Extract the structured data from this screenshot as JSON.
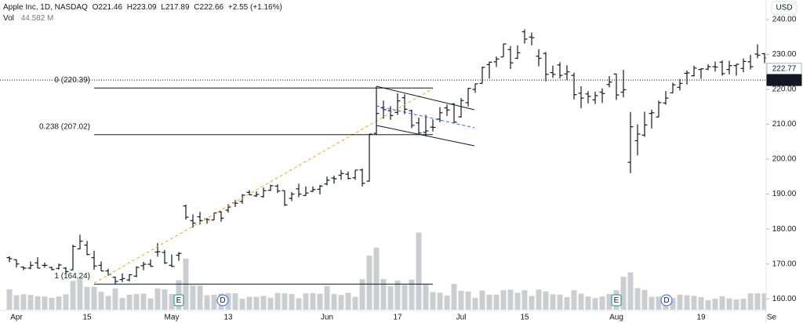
{
  "header": {
    "symbol": "Apple Inc, 1D, NASDAQ",
    "open": "O221.46",
    "high": "H223.09",
    "low": "L217.89",
    "close": "C222.66",
    "change": "+2.55 (+1.16%)",
    "volume_label": "Vol",
    "volume_value": "44.582 M"
  },
  "chart_data": {
    "type": "ohlc",
    "currency": "USD",
    "categories": [
      null,
      "Apr",
      null,
      null,
      null,
      null,
      null,
      null,
      null,
      null,
      null,
      "15",
      null,
      null,
      null,
      null,
      null,
      null,
      null,
      null,
      null,
      null,
      null,
      "May",
      null,
      null,
      null,
      null,
      null,
      null,
      null,
      "13",
      null,
      null,
      null,
      null,
      null,
      null,
      null,
      null,
      null,
      null,
      null,
      null,
      null,
      "Jun",
      null,
      null,
      null,
      null,
      null,
      null,
      null,
      null,
      null,
      "17",
      null,
      null,
      null,
      null,
      null,
      null,
      null,
      null,
      "Jul",
      null,
      null,
      null,
      null,
      null,
      null,
      null,
      null,
      "15",
      null,
      null,
      null,
      null,
      null,
      null,
      null,
      null,
      null,
      null,
      null,
      null,
      "Aug",
      null,
      null,
      null,
      null,
      null,
      null,
      null,
      null,
      null,
      null,
      null,
      "19",
      null,
      null,
      null,
      null,
      null,
      null,
      null,
      null,
      null,
      "Se"
    ],
    "open": [
      171.8,
      171.2,
      169.1,
      168.8,
      170.3,
      169.6,
      169.0,
      168.7,
      168.8,
      168.3,
      174.3,
      175.4,
      171.8,
      169.6,
      168.0,
      166.2,
      165.5,
      165.4,
      166.5,
      169.5,
      169.9,
      173.4,
      173.3,
      169.6,
      172.5,
      186.6,
      182.4,
      183.5,
      182.9,
      182.6,
      184.9,
      185.4,
      187.5,
      187.9,
      190.5,
      189.5,
      189.3,
      191.1,
      192.3,
      191.0,
      188.8,
      191.5,
      189.6,
      190.8,
      191.4,
      192.9,
      194.6,
      195.4,
      195.7,
      194.7,
      196.9,
      193.7,
      207.4,
      214.7,
      213.9,
      213.4,
      217.6,
      213.9,
      210.4,
      207.7,
      209.2,
      211.5,
      214.7,
      215.8,
      212.1,
      216.2,
      220.0,
      221.7,
      227.1,
      227.9,
      229.3,
      231.4,
      228.9,
      236.5,
      235.0,
      229.5,
      230.3,
      224.8,
      227.0,
      224.4,
      224.0,
      218.9,
      218.7,
      217.0,
      219.2,
      221.4,
      224.4,
      219.2,
      199.1,
      205.3,
      206.9,
      213.1,
      212.1,
      216.1,
      219.0,
      220.6,
      224.6,
      223.9,
      225.7,
      225.8,
      226.5,
      227.8,
      225.7,
      226.8,
      226.0,
      227.9,
      230.1,
      230.2,
      null
    ],
    "high": [
      172.2,
      171.3,
      169.3,
      170.7,
      171.9,
      170.4,
      169.2,
      170.1,
      169.1,
      175.5,
      178.4,
      176.6,
      173.8,
      170.7,
      168.6,
      166.4,
      167.3,
      167.1,
      169.3,
      170.6,
      171.3,
      176.0,
      174.0,
      172.7,
      173.4,
      187.0,
      184.2,
      184.9,
      183.1,
      184.7,
      185.1,
      187.1,
      188.3,
      190.0,
      191.1,
      190.8,
      191.9,
      192.7,
      192.8,
      191.0,
      190.6,
      193.0,
      192.2,
      192.2,
      192.6,
      195.0,
      195.3,
      196.9,
      196.5,
      196.9,
      197.3,
      207.2,
      220.2,
      216.8,
      215.2,
      218.9,
      218.6,
      214.2,
      211.9,
      212.7,
      211.4,
      214.9,
      215.7,
      216.1,
      217.5,
      220.4,
      221.6,
      226.5,
      227.9,
      229.4,
      233.1,
      232.4,
      232.6,
      237.2,
      236.3,
      231.5,
      230.7,
      226.8,
      227.8,
      226.9,
      224.8,
      220.9,
      219.5,
      219.3,
      220.3,
      223.8,
      224.5,
      225.6,
      213.5,
      210.0,
      213.6,
      214.2,
      216.8,
      219.5,
      221.9,
      223.0,
      225.4,
      226.8,
      226.0,
      227.2,
      228.0,
      228.3,
      228.2,
      227.3,
      228.9,
      229.9,
      232.9,
      230.4,
      null
    ],
    "low": [
      170.5,
      169.0,
      168.2,
      168.5,
      168.8,
      168.9,
      168.2,
      168.4,
      167.1,
      168.2,
      174.2,
      172.5,
      168.3,
      168.0,
      166.6,
      164.1,
      164.8,
      165.0,
      166.2,
      168.2,
      169.2,
      172.1,
      170.0,
      169.1,
      170.9,
      182.7,
      180.4,
      181.3,
      181.5,
      182.6,
      182.1,
      184.7,
      186.3,
      187.2,
      189.7,
      189.2,
      189.0,
      190.9,
      190.3,
      186.6,
      188.0,
      189.1,
      189.5,
      190.6,
      189.9,
      192.5,
      193.0,
      194.1,
      194.2,
      194.1,
      192.2,
      193.6,
      206.9,
      211.6,
      211.3,
      212.7,
      212.9,
      208.9,
      207.1,
      206.6,
      207.9,
      210.6,
      212.4,
      210.3,
      211.9,
      215.1,
      219.0,
      221.7,
      223.1,
      226.4,
      229.3,
      225.8,
      228.7,
      233.1,
      232.6,
      226.6,
      222.3,
      223.3,
      223.1,
      222.7,
      217.1,
      214.6,
      216.0,
      215.8,
      216.1,
      220.6,
      217.0,
      217.7,
      196.0,
      201.1,
      206.4,
      208.8,
      212.0,
      215.6,
      219.0,
      219.7,
      221.4,
      223.7,
      223.0,
      225.5,
      225.1,
      223.9,
      224.3,
      223.9,
      224.9,
      225.7,
      228.9,
      227.5,
      null
    ],
    "close": [
      171.5,
      170.0,
      168.8,
      169.6,
      168.8,
      169.6,
      168.4,
      169.7,
      167.8,
      175.0,
      176.5,
      172.7,
      169.4,
      168.0,
      167.0,
      165.0,
      165.8,
      166.9,
      169.0,
      169.9,
      169.3,
      173.5,
      170.3,
      169.3,
      173.0,
      183.4,
      181.7,
      182.4,
      182.7,
      184.6,
      183.1,
      186.3,
      187.4,
      189.7,
      189.8,
      189.9,
      191.0,
      192.4,
      190.9,
      186.9,
      190.0,
      190.0,
      190.3,
      191.3,
      192.3,
      194.0,
      194.4,
      195.9,
      194.5,
      196.9,
      193.1,
      207.2,
      213.1,
      214.2,
      212.5,
      216.7,
      214.3,
      209.7,
      207.5,
      208.1,
      209.1,
      213.3,
      214.1,
      210.6,
      216.8,
      220.3,
      221.6,
      226.3,
      227.8,
      228.7,
      233.0,
      227.6,
      230.5,
      234.4,
      234.8,
      228.9,
      224.3,
      224.3,
      224.0,
      225.0,
      218.5,
      217.5,
      218.0,
      218.2,
      218.8,
      222.1,
      218.4,
      219.9,
      209.3,
      207.2,
      209.8,
      213.3,
      216.2,
      217.5,
      221.3,
      221.7,
      224.7,
      226.1,
      225.9,
      226.5,
      226.4,
      224.5,
      226.8,
      227.2,
      228.0,
      226.5,
      229.8,
      229.0,
      null
    ],
    "volume": [
      65,
      46,
      49,
      47,
      43,
      42,
      38,
      42,
      49,
      92,
      101,
      73,
      73,
      57,
      44,
      68,
      37,
      48,
      50,
      51,
      36,
      68,
      65,
      50,
      94,
      163,
      78,
      77,
      46,
      48,
      51,
      53,
      52,
      35,
      41,
      41,
      44,
      38,
      53,
      52,
      50,
      36,
      52,
      53,
      51,
      75,
      50,
      47,
      54,
      41,
      97,
      172,
      198,
      98,
      75,
      93,
      79,
      96,
      246,
      80,
      56,
      54,
      45,
      82,
      60,
      58,
      38,
      61,
      48,
      48,
      62,
      64,
      54,
      62,
      44,
      64,
      58,
      49,
      48,
      40,
      62,
      51,
      42,
      37,
      42,
      50,
      62,
      105,
      119,
      69,
      63,
      41,
      42,
      44,
      37,
      48,
      46,
      44,
      40,
      30,
      35,
      43,
      36,
      33,
      35,
      52,
      52,
      52,
      null
    ],
    "bar_color": "#131722",
    "volume_color": "#c6c8cc",
    "ylim": [
      156.9,
      245.6
    ],
    "yticks": [
      {
        "value": 160,
        "label": "160.00"
      },
      {
        "value": 170,
        "label": "170.00"
      },
      {
        "value": 180,
        "label": "180.00"
      },
      {
        "value": 190,
        "label": "190.00"
      },
      {
        "value": 200,
        "label": "200.00"
      },
      {
        "value": 210,
        "label": "210.00"
      },
      {
        "value": 220,
        "label": "220.00"
      },
      {
        "value": 230,
        "label": "230.00"
      },
      {
        "value": 240,
        "label": "240.00"
      }
    ],
    "grid": false,
    "price_markers": [
      {
        "value": 222.77,
        "label": "222.77"
      },
      {
        "value": 222.66,
        "label": "222.66"
      }
    ],
    "fib_levels": [
      {
        "label": "0 (220.39)",
        "price": 220.39
      },
      {
        "label": "0.238 (207.02)",
        "price": 207.02
      },
      {
        "label": "1 (164.24)",
        "price": 164.24
      }
    ],
    "events": [
      "E",
      "D",
      "E",
      "D"
    ]
  }
}
